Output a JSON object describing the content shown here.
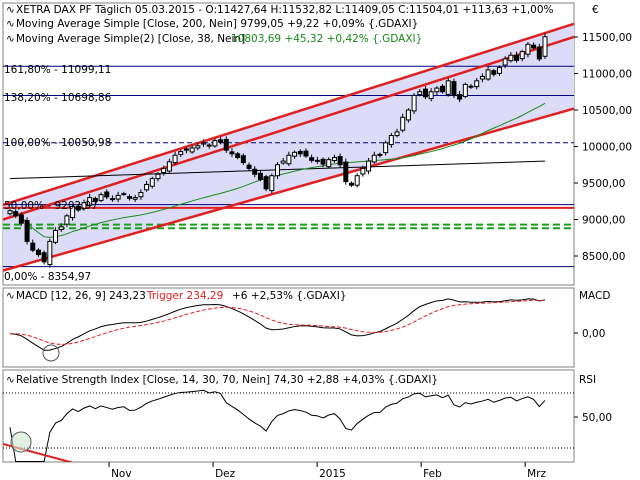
{
  "app": {
    "currency_symbol": "€"
  },
  "header": {
    "symbol_line": "XETRA DAX PF Täglich  05.03.2015 - O:11427,64 H:11532,82 L:11409,05 C:11504,01 +113,63 +1,00%",
    "ma200_line": "Moving Average Simple [Close, 200, Nein] 9799,05 +9,22 +0,09% {.GDAXI}",
    "ma38_line_a": "Moving Average Simple(2) [Close, 38, Nein]",
    "ma38_line_b": "10803,69 +45,32 +0,42% {.GDAXI}"
  },
  "fib_labels": {
    "l161": "161,80% - 11099,11",
    "l138": "138,20% - 10698,86",
    "l100": "100,00% - 10050,98",
    "l50": "50,00% - 9202,97",
    "l0": "0,00% - 8354,97"
  },
  "macd_panel": {
    "legend_a": "MACD [12, 26, 9] 243,23",
    "legend_b": "Trigger 234,29",
    "legend_c": "+6 +2,53% {.GDAXI}",
    "title": "MACD",
    "tick": "0,00"
  },
  "rsi_panel": {
    "legend": "Relative Strength Index [Close, 14, 30, 70, Nein] 74,30 +2,88 +4,03% {.GDAXI}",
    "title": "RSI",
    "tick": "50,00"
  },
  "colors": {
    "channel": "#e02020",
    "channel_fill": "#dcdcf8",
    "fib_line": "#000080",
    "ma38": "#1a8a1a",
    "ma200": "#000000",
    "support_dashed": "#1aa01a",
    "trigger": "#e02020"
  },
  "chart_data": {
    "type": "candlestick",
    "x_ticks": [
      "Nov",
      "Dez",
      "2015",
      "Feb",
      "Mrz"
    ],
    "y_ticks": [
      "11500,00",
      "11000,00",
      "10500,00",
      "10000,00",
      "9500,00",
      "9000,00",
      "8500,00"
    ],
    "ylim": [
      8300,
      11750
    ],
    "closes": [
      9120,
      9050,
      8950,
      8700,
      8580,
      8520,
      8420,
      8700,
      8850,
      8900,
      9050,
      9180,
      9130,
      9230,
      9300,
      9250,
      9340,
      9310,
      9280,
      9330,
      9350,
      9290,
      9300,
      9370,
      9480,
      9560,
      9620,
      9700,
      9790,
      9880,
      9930,
      9950,
      9980,
      10010,
      10050,
      10020,
      10080,
      10060,
      9950,
      9900,
      9850,
      9780,
      9700,
      9620,
      9550,
      9420,
      9600,
      9750,
      9800,
      9880,
      9920,
      9900,
      9870,
      9810,
      9800,
      9760,
      9820,
      9850,
      9750,
      9520,
      9470,
      9600,
      9700,
      9800,
      9880,
      9880,
      10050,
      10150,
      10200,
      10400,
      10500,
      10700,
      10750,
      10680,
      10750,
      10800,
      10750,
      10900,
      10700,
      10650,
      10850,
      10820,
      10900,
      10960,
      11050,
      10990,
      11080,
      11200,
      11250,
      11180,
      11300,
      11400,
      11350,
      11200,
      11504.01
    ],
    "ma38_first_index": 37,
    "ma200_first_index": 0,
    "macd": {
      "series": [
        "MACD",
        "Trigger"
      ],
      "last_macd": 243.23,
      "last_trigger": 234.29
    },
    "rsi": {
      "period": 14,
      "last": 74.3
    },
    "fib_levels": [
      {
        "percent": "161,80%",
        "value": 11099.11
      },
      {
        "percent": "138,20%",
        "value": 10698.86
      },
      {
        "percent": "100,00%",
        "value": 10050.98
      },
      {
        "percent": "50,00%",
        "value": 9202.97
      },
      {
        "percent": "0,00%",
        "value": 8354.97
      }
    ],
    "channel_upper": [
      [
        9200,
        11680
      ]
    ],
    "channel_lower": [
      [
        8300,
        10520
      ]
    ],
    "channel_mid": [
      [
        9000,
        11500
      ]
    ],
    "horizontal_support": [
      9160,
      8930,
      8880
    ]
  }
}
